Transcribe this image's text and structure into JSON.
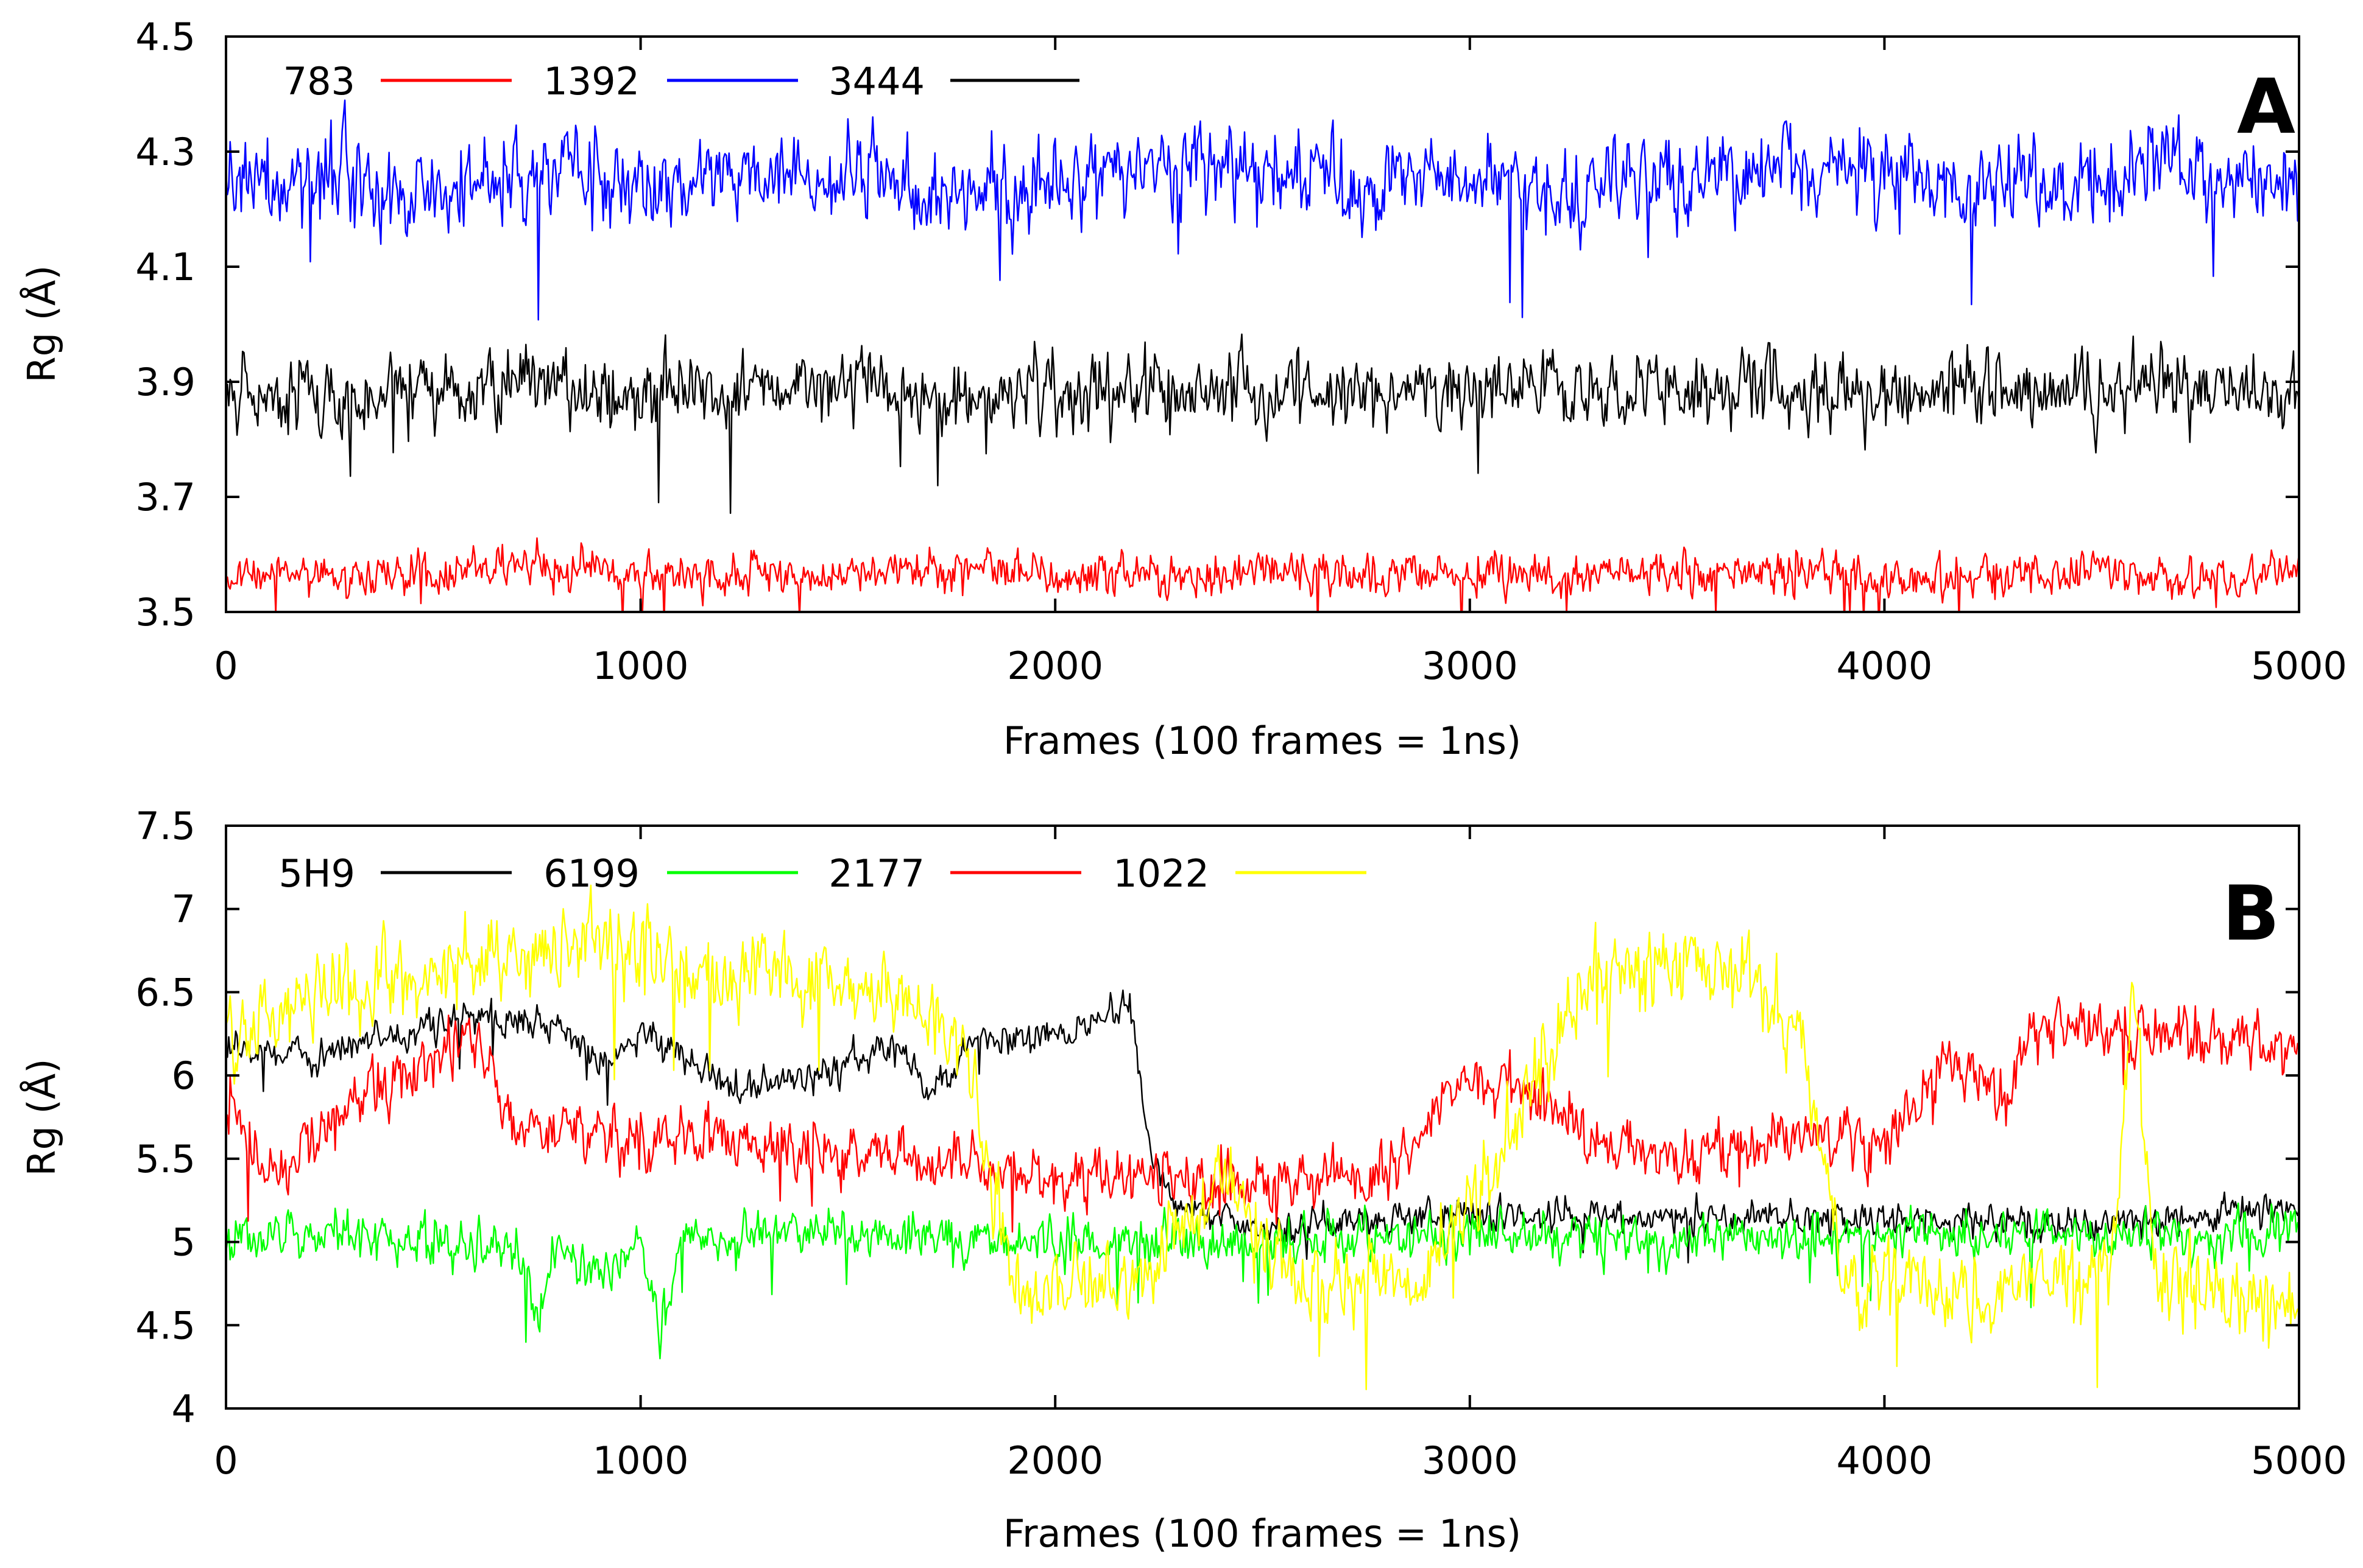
{
  "chart_data": [
    {
      "panel": "A",
      "type": "line",
      "title": "",
      "panel_label": "A",
      "xlabel": "Frames (100 frames = 1ns)",
      "ylabel": "Rg (Å)",
      "xlim": [
        0,
        5000
      ],
      "ylim": [
        3.5,
        4.5
      ],
      "x_ticks": [
        0,
        1000,
        2000,
        3000,
        4000,
        5000
      ],
      "x_tick_labels": [
        "0",
        "1000",
        "2000",
        "3000",
        "4000",
        "5000"
      ],
      "y_ticks": [
        3.5,
        3.7,
        3.9,
        4.1,
        4.3,
        4.5
      ],
      "y_tick_labels": [
        "3.5",
        "3.7",
        "3.9",
        "4.1",
        "4.3",
        "4.5"
      ],
      "legend_position": "top-left",
      "series": [
        {
          "name": "783",
          "color": "#ff0000",
          "x": [
            0,
            250,
            500,
            750,
            1000,
            1250,
            1500,
            1750,
            2000,
            2250,
            2500,
            2750,
            3000,
            3250,
            3500,
            3750,
            4000,
            4250,
            4500,
            4750,
            5000
          ],
          "values": [
            3.57,
            3.56,
            3.57,
            3.58,
            3.56,
            3.57,
            3.56,
            3.57,
            3.57,
            3.56,
            3.57,
            3.56,
            3.57,
            3.56,
            3.57,
            3.57,
            3.56,
            3.57,
            3.57,
            3.56,
            3.57
          ],
          "noise": 0.025
        },
        {
          "name": "1392",
          "color": "#0000ff",
          "x": [
            0,
            250,
            500,
            750,
            1000,
            1250,
            1500,
            1750,
            2000,
            2250,
            2500,
            2750,
            3000,
            3250,
            3500,
            3750,
            4000,
            4250,
            4500,
            4750,
            5000
          ],
          "values": [
            4.25,
            4.26,
            4.24,
            4.27,
            4.23,
            4.25,
            4.26,
            4.22,
            4.25,
            4.26,
            4.27,
            4.24,
            4.25,
            4.24,
            4.25,
            4.27,
            4.26,
            4.25,
            4.24,
            4.27,
            4.22
          ],
          "noise": 0.055
        },
        {
          "name": "3444",
          "color": "#000000",
          "x": [
            0,
            250,
            500,
            750,
            1000,
            1250,
            1500,
            1750,
            2000,
            2250,
            2500,
            2750,
            3000,
            3250,
            3500,
            3750,
            4000,
            4250,
            4500,
            4750,
            5000
          ],
          "values": [
            3.88,
            3.87,
            3.88,
            3.89,
            3.88,
            3.88,
            3.89,
            3.87,
            3.89,
            3.88,
            3.88,
            3.87,
            3.89,
            3.88,
            3.88,
            3.88,
            3.88,
            3.89,
            3.88,
            3.89,
            3.87
          ],
          "noise": 0.045
        }
      ]
    },
    {
      "panel": "B",
      "type": "line",
      "title": "",
      "panel_label": "B",
      "xlabel": "Frames (100 frames = 1ns)",
      "ylabel": "Rg (Å)",
      "xlim": [
        0,
        5000
      ],
      "ylim": [
        4,
        7.5
      ],
      "x_ticks": [
        0,
        1000,
        2000,
        3000,
        4000,
        5000
      ],
      "x_tick_labels": [
        "0",
        "1000",
        "2000",
        "3000",
        "4000",
        "5000"
      ],
      "y_ticks": [
        4,
        4.5,
        5,
        5.5,
        6,
        6.5,
        7,
        7.5
      ],
      "y_tick_labels": [
        "4",
        "4.5",
        "5",
        "5.5",
        "6",
        "6.5",
        "7",
        "7.5"
      ],
      "legend_position": "top-left",
      "series": [
        {
          "name": "5H9",
          "color": "#000000",
          "x": [
            0,
            200,
            400,
            600,
            800,
            900,
            1000,
            1200,
            1400,
            1600,
            1700,
            1800,
            2000,
            2180,
            2230,
            2300,
            2500,
            3000,
            3500,
            4000,
            4500,
            5000
          ],
          "values": [
            6.2,
            6.1,
            6.25,
            6.35,
            6.3,
            6.05,
            6.25,
            5.95,
            5.95,
            6.2,
            5.9,
            6.2,
            6.25,
            6.4,
            5.55,
            5.2,
            5.1,
            5.15,
            5.15,
            5.15,
            5.1,
            5.2
          ],
          "noise": 0.07
        },
        {
          "name": "6199",
          "color": "#00ff00",
          "x": [
            0,
            250,
            500,
            700,
            750,
            800,
            900,
            1000,
            1050,
            1100,
            1200,
            1500,
            1800,
            2000,
            2500,
            3000,
            3500,
            4000,
            4500,
            5000
          ],
          "values": [
            5.05,
            5.05,
            5.0,
            4.95,
            4.6,
            5.0,
            4.8,
            5.0,
            4.45,
            5.0,
            5.05,
            5.05,
            5.0,
            5.0,
            5.0,
            5.05,
            5.0,
            5.05,
            5.05,
            5.05
          ],
          "noise": 0.1
        },
        {
          "name": "2177",
          "color": "#ff0000",
          "x": [
            0,
            100,
            300,
            600,
            700,
            1000,
            1300,
            1600,
            2000,
            2500,
            2800,
            2950,
            3100,
            3300,
            3500,
            3800,
            4000,
            4150,
            4300,
            4350,
            4600,
            5000
          ],
          "values": [
            5.9,
            5.4,
            5.8,
            6.2,
            5.7,
            5.6,
            5.6,
            5.5,
            5.4,
            5.35,
            5.4,
            5.9,
            6.0,
            5.6,
            5.5,
            5.6,
            5.6,
            6.1,
            5.85,
            6.25,
            6.25,
            6.2
          ],
          "noise": 0.12
        },
        {
          "name": "1022",
          "color": "#ffff00",
          "x": [
            0,
            300,
            600,
            900,
            1200,
            1500,
            1700,
            1800,
            1900,
            2200,
            2400,
            2600,
            2900,
            3100,
            3300,
            3600,
            3800,
            3900,
            4200,
            4550,
            4600,
            4650,
            5000
          ],
          "values": [
            6.2,
            6.55,
            6.7,
            6.8,
            6.6,
            6.55,
            6.4,
            6.0,
            4.75,
            4.8,
            5.4,
            4.75,
            4.85,
            5.7,
            6.6,
            6.7,
            6.3,
            4.8,
            4.7,
            4.8,
            6.6,
            4.8,
            4.6
          ],
          "noise": 0.17
        }
      ]
    }
  ]
}
